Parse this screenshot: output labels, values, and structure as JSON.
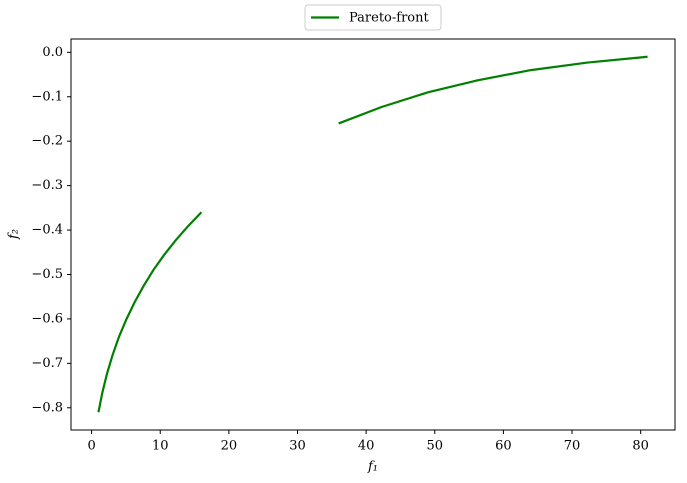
{
  "chart_data": {
    "type": "line",
    "x_label": "f₁",
    "y_label": "f₂",
    "x": [
      1,
      1.5625,
      2.25,
      3.0625,
      4,
      5.0625,
      6.25,
      7.5625,
      9,
      10.5625,
      12.25,
      14.0625,
      16,
      26,
      36,
      42.25,
      49,
      56.25,
      64,
      72.25,
      81
    ],
    "series": [
      {
        "name": "Pareto-front",
        "color": "#008000",
        "values": [
          -0.81,
          -0.766,
          -0.723,
          -0.681,
          -0.64,
          -0.601,
          -0.563,
          -0.526,
          -0.49,
          -0.456,
          -0.423,
          -0.391,
          -0.36,
          null,
          -0.16,
          -0.123,
          -0.09,
          -0.063,
          -0.04,
          -0.023,
          -0.01
        ]
      }
    ],
    "xlim": [
      -3,
      85
    ],
    "ylim": [
      -0.85,
      0.03
    ],
    "xticks": [
      0,
      10,
      20,
      30,
      40,
      50,
      60,
      70,
      80
    ],
    "yticks": [
      {
        "value": 0,
        "label": "0.0"
      },
      {
        "value": -0.1,
        "label": "−0.1"
      },
      {
        "value": -0.2,
        "label": "−0.2"
      },
      {
        "value": -0.3,
        "label": "−0.3"
      },
      {
        "value": -0.4,
        "label": "−0.4"
      },
      {
        "value": -0.5,
        "label": "−0.5"
      },
      {
        "value": -0.6,
        "label": "−0.6"
      },
      {
        "value": -0.7,
        "label": "−0.7"
      },
      {
        "value": -0.8,
        "label": "−0.8"
      }
    ],
    "legend": "upper center"
  }
}
